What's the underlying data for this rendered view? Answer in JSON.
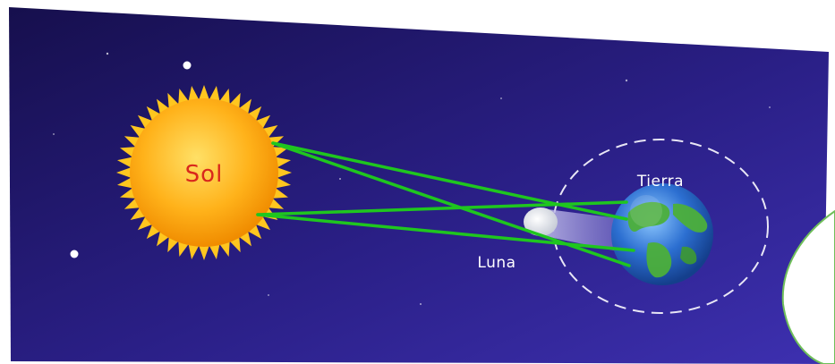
{
  "labels": {
    "sun": "Sol",
    "earth": "Tierra",
    "moon": "Luna"
  },
  "colors": {
    "sky_dark": "#1d1460",
    "sky_light": "#3a2fa8",
    "sun_body": "#ffb21a",
    "sun_rays": "#ffc61f",
    "sun_label": "#d9281c",
    "light_rays": "#1fc61f",
    "orbit": "#e8e6f5",
    "label_text": "#ffffff",
    "callout_border": "#6fbf5a",
    "earth_ocean": "#2c6fd1",
    "earth_land": "#4caf3a",
    "moon_body": "#e9edf2"
  },
  "icons": {
    "sun": "sun-icon",
    "earth": "earth-globe-icon",
    "moon": "moon-icon"
  }
}
